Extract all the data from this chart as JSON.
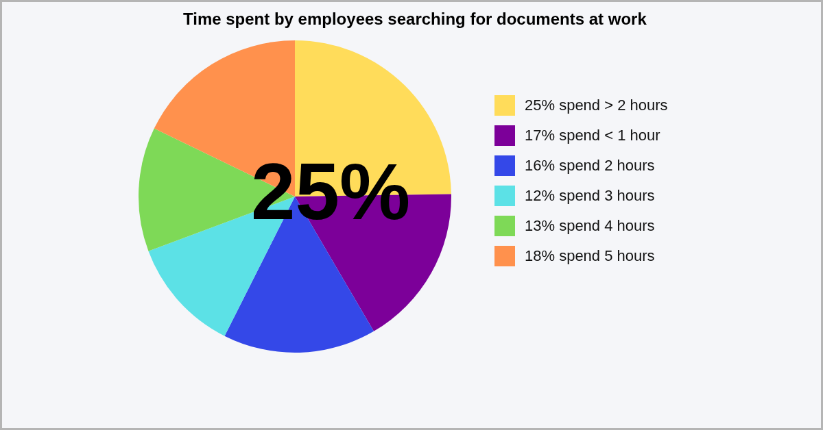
{
  "chart_data": {
    "type": "pie",
    "title": "Time spent by employees searching for documents at work",
    "categories": [
      "25% spend > 2 hours",
      "17% spend < 1 hour",
      "16% spend 2 hours",
      "12% spend 3 hours",
      "13% spend 4 hours",
      "18% spend 5 hours"
    ],
    "values": [
      25,
      17,
      16,
      12,
      13,
      18
    ],
    "colors": [
      "#ffdc5a",
      "#7c0099",
      "#3448e8",
      "#5ce1e6",
      "#7ed957",
      "#ff914d"
    ],
    "legend": "right",
    "annotations": [
      "25%"
    ]
  }
}
